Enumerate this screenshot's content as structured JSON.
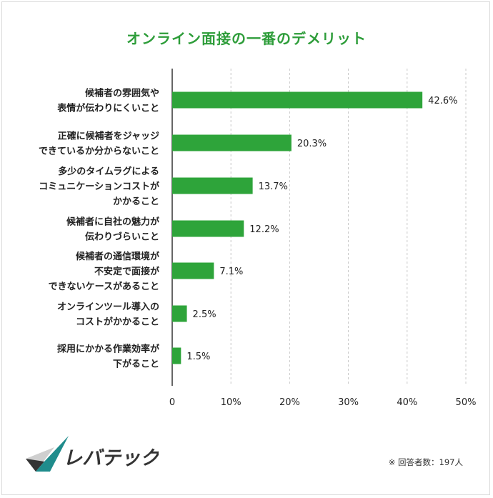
{
  "chart_data": {
    "type": "bar",
    "orientation": "horizontal",
    "title": "オンライン面接の一番のデメリット",
    "categories": [
      [
        "候補者の雰囲気や",
        "表情が伝わりにくいこと"
      ],
      [
        "正確に候補者をジャッジ",
        "できているか分からないこと"
      ],
      [
        "多少のタイムラグによる",
        "コミュニケーションコストが",
        "かかること"
      ],
      [
        "候補者に自社の魅力が",
        "伝わりづらいこと"
      ],
      [
        "候補者の通信環境が",
        "不安定で面接が",
        "できないケースがあること"
      ],
      [
        "オンラインツール導入の",
        "コストがかかること"
      ],
      [
        "採用にかかる作業効率が",
        "下がること"
      ]
    ],
    "values": [
      42.6,
      20.3,
      13.7,
      12.2,
      7.1,
      2.5,
      1.5
    ],
    "value_labels": [
      "42.6%",
      "20.3%",
      "13.7%",
      "12.2%",
      "7.1%",
      "2.5%",
      "1.5%"
    ],
    "xlim": [
      0,
      50
    ],
    "ticks": [
      "0",
      "10%",
      "20%",
      "30%",
      "40%",
      "50%"
    ],
    "tick_values": [
      0,
      10,
      20,
      30,
      40,
      50
    ],
    "grid": "vertical dashed",
    "colors": {
      "bar": "#2ea43a",
      "title": "#2e9d3a",
      "grid": "#c8c8c8",
      "axis": "#333333"
    }
  },
  "footnote": "※ 回答者数：197人",
  "logo": {
    "text": "レバテック",
    "colors": {
      "dark": "#333333",
      "teal": "#1f8c8c",
      "gray": "#cfcfcf"
    }
  }
}
